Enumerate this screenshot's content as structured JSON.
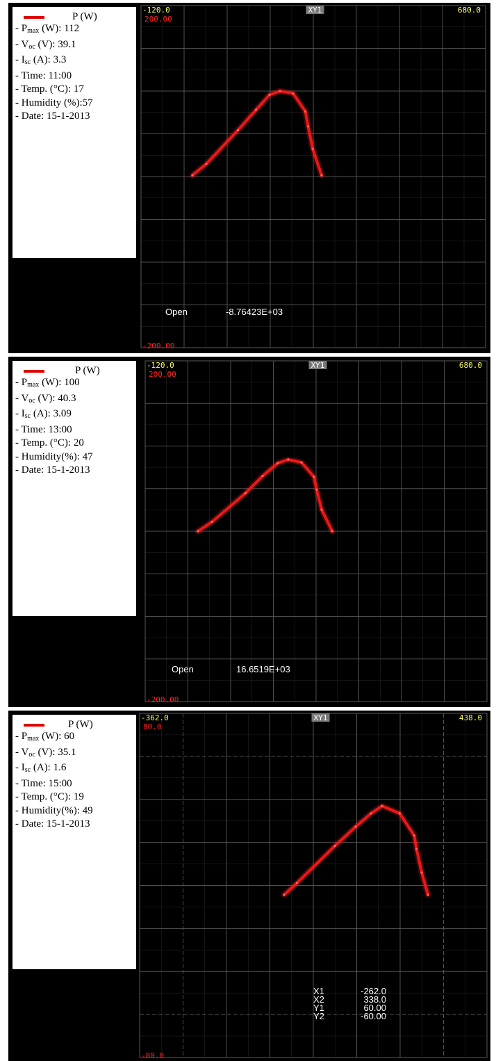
{
  "panels": [
    {
      "legend": {
        "series_name": "P (W)",
        "items": [
          {
            "prefix": "- P",
            "sub": "max",
            "suffix": " (W): 112"
          },
          {
            "prefix": "- V",
            "sub": "oc",
            "suffix": " (V): 39.1"
          },
          {
            "prefix": "- I",
            "sub": "sc",
            "suffix": " (A): 3.3"
          },
          {
            "prefix": "- Time: 11:00",
            "sub": "",
            "suffix": ""
          },
          {
            "prefix": "- Temp. (°C): 17",
            "sub": "",
            "suffix": ""
          },
          {
            "prefix": "- Humidity (%):57",
            "sub": "",
            "suffix": ""
          },
          {
            "prefix": "- Date: 15-1-2013",
            "sub": "",
            "suffix": ""
          }
        ]
      },
      "screen": {
        "x_left": "-120.0",
        "x_right": "680.0",
        "label": "XY1",
        "y_top": "200.00",
        "y_bottom": "-200.00",
        "readout": [
          {
            "label": "Open",
            "value": "-8.76423E+03"
          }
        ]
      }
    },
    {
      "legend": {
        "series_name": "P (W)",
        "items": [
          {
            "prefix": "- P",
            "sub": "max",
            "suffix": " (W): 100"
          },
          {
            "prefix": "- V",
            "sub": "oc",
            "suffix": " (V): 40.3"
          },
          {
            "prefix": "- I",
            "sub": "sc",
            "suffix": " (A): 3.09"
          },
          {
            "prefix": "- Time: 13:00",
            "sub": "",
            "suffix": ""
          },
          {
            "prefix": "- Temp. (°C): 20",
            "sub": "",
            "suffix": ""
          },
          {
            "prefix": "- Humidity(%): 47",
            "sub": "",
            "suffix": ""
          },
          {
            "prefix": "- Date: 15-1-2013",
            "sub": "",
            "suffix": ""
          }
        ]
      },
      "screen": {
        "x_left": "-120.0",
        "x_right": "680.0",
        "label": "XY1",
        "y_top": "200.00",
        "y_bottom": "-200.00",
        "readout": [
          {
            "label": "Open",
            "value": "16.6519E+03"
          }
        ]
      }
    },
    {
      "legend": {
        "series_name": "P (W)",
        "items": [
          {
            "prefix": "- P",
            "sub": "max",
            "suffix": " (W): 60"
          },
          {
            "prefix": "- V",
            "sub": "oc",
            "suffix": " (V): 35.1"
          },
          {
            "prefix": "- I",
            "sub": "sc",
            "suffix": " (A): 1.6"
          },
          {
            "prefix": "- Time: 15:00",
            "sub": "",
            "suffix": ""
          },
          {
            "prefix": "- Temp. (°C): 19",
            "sub": "",
            "suffix": ""
          },
          {
            "prefix": "- Humidity(%): 49",
            "sub": "",
            "suffix": ""
          },
          {
            "prefix": "- Date: 15-1-2013",
            "sub": "",
            "suffix": ""
          }
        ]
      },
      "screen": {
        "x_left": "-362.0",
        "x_right": "438.0",
        "label": "XY1",
        "y_top": "80.0",
        "y_bottom": "-80.0",
        "readout": [
          {
            "label": "X1",
            "value": "-262.0"
          },
          {
            "label": "X2",
            "value": "338.0"
          },
          {
            "label": "Y1",
            "value": "60.00"
          },
          {
            "label": "Y2",
            "value": "-60.00"
          }
        ]
      }
    }
  ],
  "colors": {
    "trace": "#ff1a1a",
    "grid": "#5a5a5a",
    "corner_label": "#ffff66",
    "y_label": "#ff2020",
    "background": "#000000"
  },
  "chart_data": [
    {
      "type": "line",
      "series": [
        {
          "name": "P (W)",
          "x": [
            0,
            36,
            118,
            165,
            200,
            227,
            261,
            293,
            300,
            312,
            335
          ],
          "y": [
            0,
            15,
            60,
            87,
            107,
            112,
            109,
            85,
            65,
            35,
            0
          ]
        }
      ],
      "xlim": [
        -120,
        680
      ],
      "ylim": [
        -200,
        200
      ],
      "xlabel": "",
      "ylabel": "",
      "grid": true
    },
    {
      "type": "line",
      "series": [
        {
          "name": "P (W)",
          "x": [
            0,
            36,
            122,
            166,
            205,
            232,
            266,
            298,
            305,
            318,
            345
          ],
          "y": [
            0,
            13,
            53,
            77,
            95,
            100,
            96,
            76,
            58,
            30,
            0
          ]
        }
      ],
      "xlim": [
        -120,
        680
      ],
      "ylim": [
        -200,
        200
      ],
      "xlabel": "",
      "ylabel": "",
      "grid": true
    },
    {
      "type": "line",
      "series": [
        {
          "name": "P (W)",
          "x": [
            0,
            29,
            115,
            162,
            197,
            222,
            262,
            295,
            300,
            312,
            326
          ],
          "y": [
            0,
            8,
            33,
            46,
            55,
            60,
            55,
            40,
            31,
            15,
            0
          ]
        }
      ],
      "xlim": [
        -362,
        438
      ],
      "ylim": [
        -80,
        80
      ],
      "xlabel": "",
      "ylabel": "",
      "grid": true
    }
  ]
}
